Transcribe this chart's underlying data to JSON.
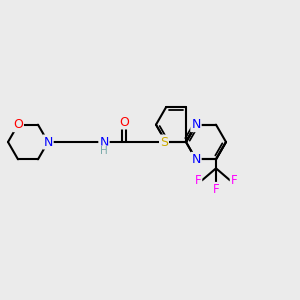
{
  "bg_color": "#ebebeb",
  "bond_color": "#000000",
  "atom_colors": {
    "O": "#ff0000",
    "N": "#0000ff",
    "S": "#ccaa00",
    "F": "#ff00ff",
    "C": "#000000",
    "H": "#7aabab"
  },
  "figsize": [
    3.0,
    3.0
  ],
  "dpi": 100
}
